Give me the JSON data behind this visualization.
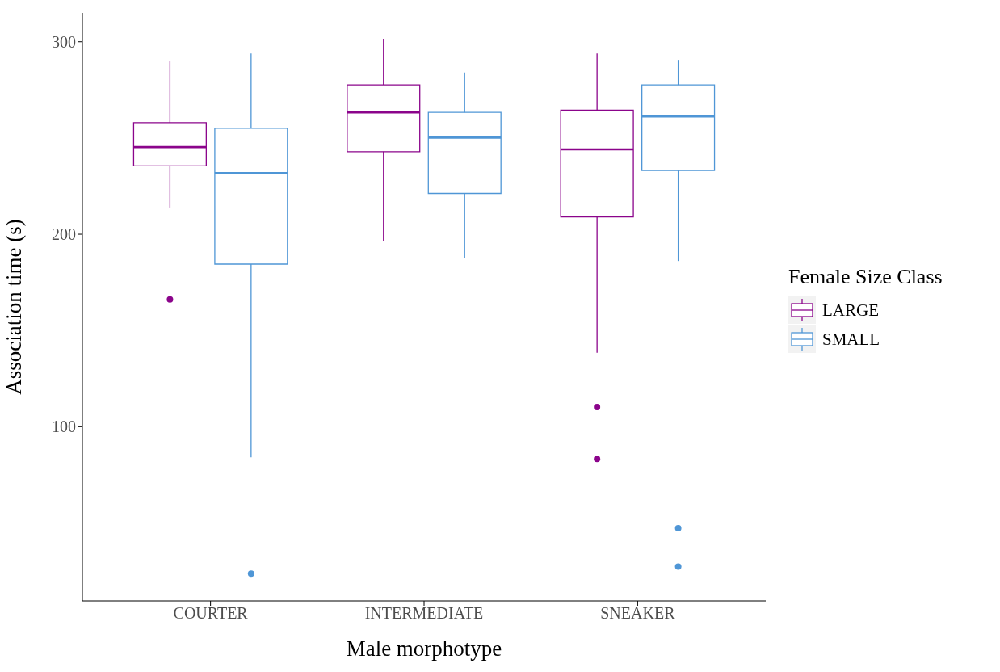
{
  "chart_data": {
    "type": "box",
    "xlabel": "Male morphotype",
    "ylabel": "Association time (s)",
    "legend_title": "Female Size Class",
    "legend": "right",
    "grid": false,
    "categories": [
      "COURTER",
      "INTERMEDIATE",
      "SNEAKER"
    ],
    "ylim": [
      9.5,
      315
    ],
    "yticks": [
      100,
      200,
      300
    ],
    "series": [
      {
        "name": "LARGE",
        "color": "#8b048b",
        "boxes": [
          {
            "low": 213.9,
            "q1": 235.5,
            "median": 245.3,
            "q3": 258,
            "high": 289.8,
            "outliers": [
              166.1
            ]
          },
          {
            "low": 196.3,
            "q1": 242.9,
            "median": 263.3,
            "q3": 277.6,
            "high": 301.6
          },
          {
            "low": 138.4,
            "q1": 209,
            "median": 244.1,
            "q3": 264.5,
            "high": 293.9,
            "outliers": [
              110.2,
              83.3
            ]
          }
        ]
      },
      {
        "name": "SMALL",
        "color": "#4f96d6",
        "boxes": [
          {
            "low": 84.1,
            "q1": 184.5,
            "median": 231.8,
            "q3": 255.1,
            "high": 293.9,
            "outliers": [
              23.7
            ]
          },
          {
            "low": 187.8,
            "q1": 221.2,
            "median": 250.2,
            "q3": 263.3,
            "high": 284.1
          },
          {
            "low": 186.1,
            "q1": 233.1,
            "median": 261.2,
            "q3": 277.6,
            "high": 290.6,
            "outliers": [
              47.3,
              27.3
            ]
          }
        ]
      }
    ]
  }
}
